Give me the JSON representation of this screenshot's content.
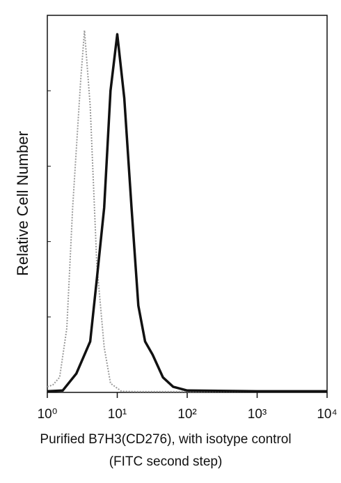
{
  "chart_data": {
    "type": "line",
    "x_label": "Purified B7H3(CD276), with isotype control",
    "x_label_2": "(FITC second step)",
    "y_label": "Relative Cell Number",
    "xscale": "log",
    "xlim": [
      1,
      10000
    ],
    "xticks": [
      {
        "value": 1,
        "label": "10⁰"
      },
      {
        "value": 10,
        "label": "10¹"
      },
      {
        "value": 100,
        "label": "10²"
      },
      {
        "value": 1000,
        "label": "10³"
      },
      {
        "value": 10000,
        "label": "10⁴"
      }
    ],
    "ylim": [
      0,
      100
    ],
    "yticks": [
      0,
      20,
      40,
      60,
      80,
      100
    ],
    "series": [
      {
        "name": "isotype",
        "color": "#9a9a9a",
        "dash": true,
        "x": [
          1,
          1.2,
          1.5,
          1.9,
          2.3,
          3,
          3.4,
          4.1,
          5.1,
          6.5,
          8,
          11.5,
          20,
          100,
          1000,
          10000
        ],
        "values": [
          1.5,
          2,
          4,
          17,
          49,
          83,
          96,
          76,
          34,
          12,
          2.4,
          0.3,
          0.2,
          0.2,
          0.2,
          0.2
        ]
      },
      {
        "name": "B7H3",
        "color": "#111111",
        "dash": false,
        "x": [
          1,
          1.66,
          2.6,
          4.1,
          5.1,
          6.5,
          8,
          10,
          12.6,
          16,
          20,
          25,
          32,
          45,
          63,
          100,
          1000,
          10000
        ],
        "values": [
          0.3,
          0.5,
          5,
          13.5,
          30,
          49,
          80,
          95,
          78,
          49,
          23,
          13.5,
          10,
          4,
          1.5,
          0.5,
          0.3,
          0.3
        ]
      }
    ]
  }
}
